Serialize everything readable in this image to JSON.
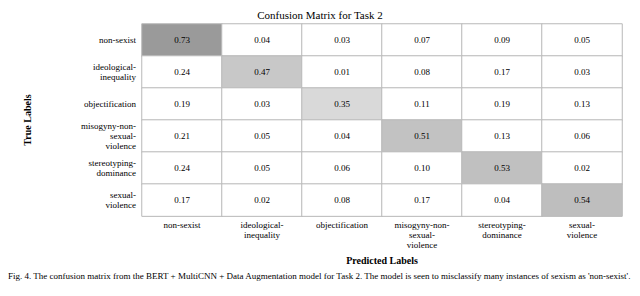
{
  "chart_data": {
    "type": "heatmap",
    "title": "Confusion Matrix for Task 2",
    "x_label": "Predicted Labels",
    "y_label": "True Labels",
    "caption": "Fig. 4. The confusion matrix from the BERT + MultiCNN + Data Augmentation model for Task 2. The model is seen to misclassify many instances of sexism as 'non-sexist'.",
    "x_categories": [
      "non-sexist",
      "ideological-inequality",
      "objectification",
      "misogyny-non-sexual-violence",
      "stereotyping-dominance",
      "sexual-violence"
    ],
    "y_categories": [
      "non-sexist",
      "ideological-inequality",
      "objectification",
      "misogyny-non-sexual-violence",
      "stereotyping-dominance",
      "sexual-violence"
    ],
    "values": [
      [
        0.73,
        0.04,
        0.03,
        0.07,
        0.09,
        0.05
      ],
      [
        0.24,
        0.47,
        0.01,
        0.08,
        0.17,
        0.03
      ],
      [
        0.19,
        0.03,
        0.35,
        0.11,
        0.19,
        0.13
      ],
      [
        0.21,
        0.05,
        0.04,
        0.51,
        0.13,
        0.06
      ],
      [
        0.24,
        0.05,
        0.06,
        0.1,
        0.53,
        0.02
      ],
      [
        0.17,
        0.02,
        0.08,
        0.17,
        0.04,
        0.54
      ]
    ],
    "value_labels": [
      [
        "0.73",
        "0.04",
        "0.03",
        "0.07",
        "0.09",
        "0.05"
      ],
      [
        "0.24",
        "0.47",
        "0.01",
        "0.08",
        "0.17",
        "0.03"
      ],
      [
        "0.19",
        "0.03",
        "0.35",
        "0.11",
        "0.19",
        "0.13"
      ],
      [
        "0.21",
        "0.05",
        "0.04",
        "0.51",
        "0.13",
        "0.06"
      ],
      [
        "0.24",
        "0.05",
        "0.06",
        "0.10",
        "0.53",
        "0.02"
      ],
      [
        "0.17",
        "0.02",
        "0.08",
        "0.17",
        "0.04",
        "0.54"
      ]
    ],
    "colors": [
      [
        "#9a9a9a",
        "#ffffff",
        "#ffffff",
        "#ffffff",
        "#ffffff",
        "#ffffff"
      ],
      [
        "#ffffff",
        "#c8c8c8",
        "#ffffff",
        "#ffffff",
        "#ffffff",
        "#ffffff"
      ],
      [
        "#ffffff",
        "#ffffff",
        "#d9d9d9",
        "#ffffff",
        "#ffffff",
        "#ffffff"
      ],
      [
        "#ffffff",
        "#ffffff",
        "#ffffff",
        "#c2c2c2",
        "#ffffff",
        "#ffffff"
      ],
      [
        "#ffffff",
        "#ffffff",
        "#ffffff",
        "#ffffff",
        "#c0c0c0",
        "#ffffff"
      ],
      [
        "#ffffff",
        "#ffffff",
        "#ffffff",
        "#ffffff",
        "#ffffff",
        "#bebebe"
      ]
    ],
    "data_labels": true
  }
}
